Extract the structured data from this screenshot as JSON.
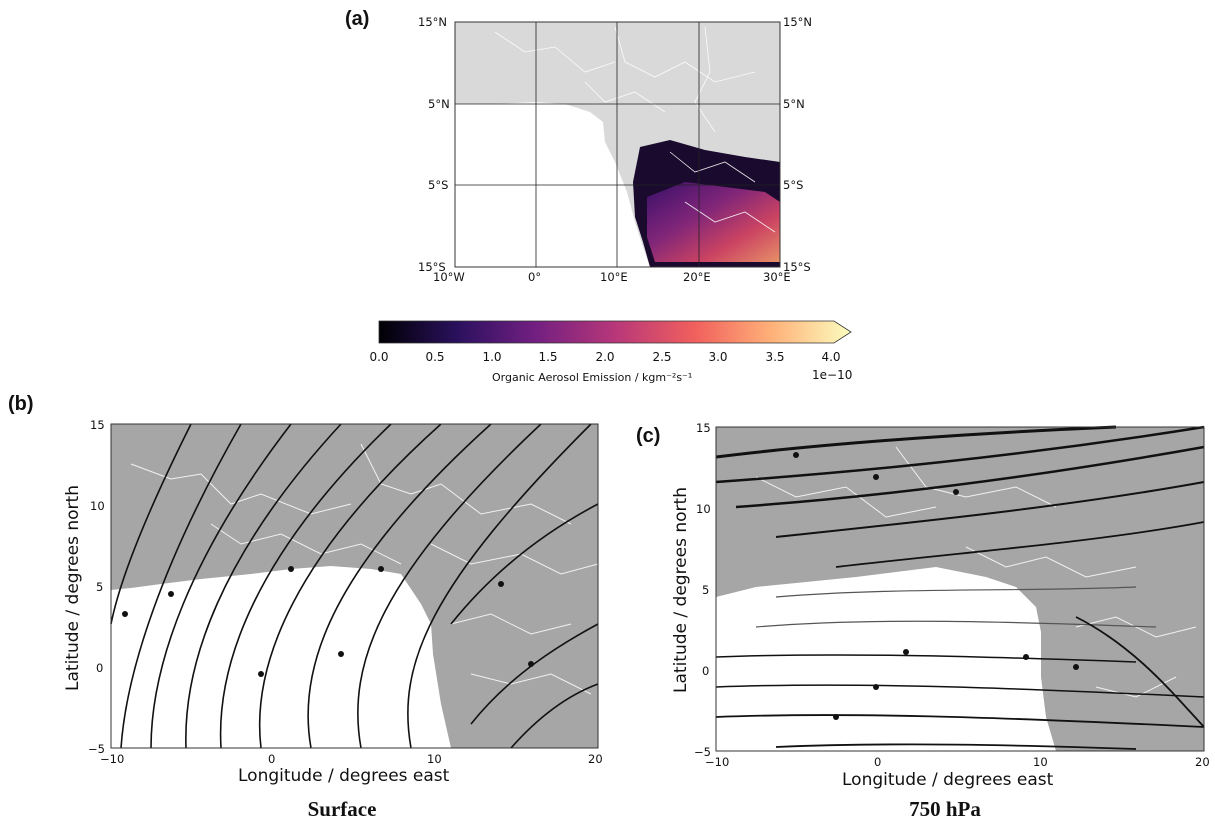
{
  "panels": {
    "a": {
      "label": "(a)",
      "lat_ticks_left": [
        "15°N",
        "5°N",
        "5°S",
        "15°S"
      ],
      "lat_ticks_right": [
        "15°N",
        "5°N",
        "5°S",
        "15°S"
      ],
      "lon_ticks": [
        "10°W",
        "0°",
        "10°E",
        "20°E",
        "30°E"
      ],
      "extent": {
        "lon": [
          -10,
          30
        ],
        "lat": [
          -15,
          15
        ]
      },
      "land_color": "#d9d9d9",
      "border_color": "#ffffff"
    },
    "b": {
      "label": "(b)",
      "caption": "Surface",
      "xlabel": "Longitude / degrees east",
      "ylabel": "Latitude / degrees north",
      "xticks": [
        "−10",
        "0",
        "10",
        "20"
      ],
      "yticks": [
        "15",
        "10",
        "5",
        "0",
        "−5"
      ],
      "extent": {
        "lon": [
          -10,
          20
        ],
        "lat": [
          -5,
          15
        ]
      },
      "land_color": "#a6a6a6"
    },
    "c": {
      "label": "(c)",
      "caption": "750 hPa",
      "xlabel": "Longitude / degrees east",
      "ylabel": "Latitude / degrees north",
      "xticks": [
        "−10",
        "0",
        "10",
        "20"
      ],
      "yticks": [
        "15",
        "10",
        "5",
        "0",
        "−5"
      ],
      "extent": {
        "lon": [
          -10,
          20
        ],
        "lat": [
          -5,
          15
        ]
      },
      "land_color": "#a6a6a6"
    }
  },
  "colorbar": {
    "label": "Organic Aerosol Emission / kgm⁻²s⁻¹",
    "ticks": [
      "0.0",
      "0.5",
      "1.0",
      "1.5",
      "2.0",
      "2.5",
      "3.0",
      "3.5",
      "4.0"
    ],
    "range": [
      0,
      4
    ],
    "multiplier": "1e−10",
    "colormap": [
      "#000004",
      "#2c115f",
      "#721f81",
      "#b73779",
      "#f1605d",
      "#feb078",
      "#fcfdbf"
    ],
    "extend": "max"
  }
}
